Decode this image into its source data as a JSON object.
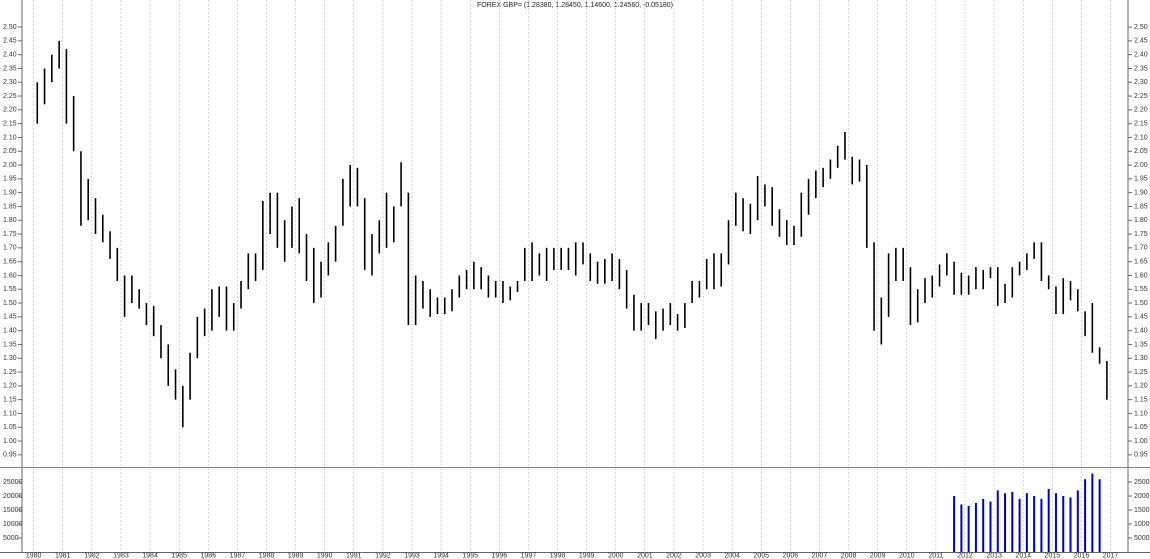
{
  "chart_data": [
    {
      "type": "ohlc",
      "title": "FOREX GBP= (1.28380, 1.28450, 1.14600, 1.24560, -0.05180)",
      "color": "#000000",
      "xlim": [
        1979.6,
        2017.6
      ],
      "ylim": [
        0.906,
        2.598
      ],
      "yticks": [
        0.95,
        {
          "value": 1.0,
          "label": "1.00"
        },
        1.05,
        {
          "value": 1.1,
          "label": "1.10"
        },
        1.15,
        {
          "value": 1.2,
          "label": "1.20"
        },
        1.25,
        {
          "value": 1.3,
          "label": "1.30"
        },
        1.35,
        {
          "value": 1.4,
          "label": "1.40"
        },
        1.45,
        {
          "value": 1.5,
          "label": "1.50"
        },
        1.55,
        {
          "value": 1.6,
          "label": "1.60"
        },
        1.65,
        {
          "value": 1.7,
          "label": "1.70"
        },
        1.75,
        {
          "value": 1.8,
          "label": "1.80"
        },
        1.85,
        {
          "value": 1.9,
          "label": "1.90"
        },
        1.95,
        {
          "value": 2.0,
          "label": "2.00"
        },
        2.05,
        {
          "value": 2.1,
          "label": "2.10"
        },
        2.15,
        {
          "value": 2.2,
          "label": "2.20"
        },
        2.25,
        {
          "value": 2.3,
          "label": "2.30"
        },
        2.35,
        {
          "value": 2.4,
          "label": "2.40"
        },
        2.45,
        {
          "value": 2.5,
          "label": "2.50"
        }
      ],
      "x": [
        1980.125,
        1980.375,
        1980.625,
        1980.875,
        1981.125,
        1981.375,
        1981.625,
        1981.875,
        1982.125,
        1982.375,
        1982.625,
        1982.875,
        1983.125,
        1983.375,
        1983.625,
        1983.875,
        1984.125,
        1984.375,
        1984.625,
        1984.875,
        1985.125,
        1985.375,
        1985.625,
        1985.875,
        1986.125,
        1986.375,
        1986.625,
        1986.875,
        1987.125,
        1987.375,
        1987.625,
        1987.875,
        1988.125,
        1988.375,
        1988.625,
        1988.875,
        1989.125,
        1989.375,
        1989.625,
        1989.875,
        1990.125,
        1990.375,
        1990.625,
        1990.875,
        1991.125,
        1991.375,
        1991.625,
        1991.875,
        1992.125,
        1992.375,
        1992.625,
        1992.875,
        1993.125,
        1993.375,
        1993.625,
        1993.875,
        1994.125,
        1994.375,
        1994.625,
        1994.875,
        1995.125,
        1995.375,
        1995.625,
        1995.875,
        1996.125,
        1996.375,
        1996.625,
        1996.875,
        1997.125,
        1997.375,
        1997.625,
        1997.875,
        1998.125,
        1998.375,
        1998.625,
        1998.875,
        1999.125,
        1999.375,
        1999.625,
        1999.875,
        2000.125,
        2000.375,
        2000.625,
        2000.875,
        2001.125,
        2001.375,
        2001.625,
        2001.875,
        2002.125,
        2002.375,
        2002.625,
        2002.875,
        2003.125,
        2003.375,
        2003.625,
        2003.875,
        2004.125,
        2004.375,
        2004.625,
        2004.875,
        2005.125,
        2005.375,
        2005.625,
        2005.875,
        2006.125,
        2006.375,
        2006.625,
        2006.875,
        2007.125,
        2007.375,
        2007.625,
        2007.875,
        2008.125,
        2008.375,
        2008.625,
        2008.875,
        2009.125,
        2009.375,
        2009.625,
        2009.875,
        2010.125,
        2010.375,
        2010.625,
        2010.875,
        2011.125,
        2011.375,
        2011.625,
        2011.875,
        2012.125,
        2012.375,
        2012.625,
        2012.875,
        2013.125,
        2013.375,
        2013.625,
        2013.875,
        2014.125,
        2014.375,
        2014.625,
        2014.875,
        2015.125,
        2015.375,
        2015.625,
        2015.875,
        2016.125,
        2016.375,
        2016.625,
        2016.875
      ],
      "high": [
        2.3,
        2.35,
        2.4,
        2.45,
        2.42,
        2.25,
        2.05,
        1.95,
        1.88,
        1.82,
        1.76,
        1.7,
        1.6,
        1.6,
        1.55,
        1.5,
        1.49,
        1.42,
        1.35,
        1.26,
        1.2,
        1.32,
        1.45,
        1.48,
        1.55,
        1.56,
        1.56,
        1.5,
        1.58,
        1.68,
        1.68,
        1.87,
        1.9,
        1.9,
        1.8,
        1.85,
        1.88,
        1.75,
        1.7,
        1.65,
        1.72,
        1.78,
        1.95,
        2.0,
        1.99,
        1.88,
        1.75,
        1.8,
        1.9,
        1.85,
        2.01,
        1.9,
        1.6,
        1.58,
        1.55,
        1.52,
        1.52,
        1.55,
        1.6,
        1.62,
        1.65,
        1.63,
        1.6,
        1.58,
        1.58,
        1.56,
        1.58,
        1.7,
        1.72,
        1.68,
        1.7,
        1.7,
        1.7,
        1.7,
        1.72,
        1.72,
        1.68,
        1.65,
        1.66,
        1.68,
        1.66,
        1.62,
        1.53,
        1.5,
        1.5,
        1.47,
        1.48,
        1.5,
        1.46,
        1.5,
        1.58,
        1.58,
        1.66,
        1.68,
        1.68,
        1.8,
        1.9,
        1.88,
        1.86,
        1.96,
        1.93,
        1.92,
        1.84,
        1.8,
        1.78,
        1.9,
        1.95,
        1.98,
        1.99,
        2.02,
        2.07,
        2.12,
        2.03,
        2.02,
        2.0,
        1.72,
        1.52,
        1.68,
        1.7,
        1.7,
        1.63,
        1.55,
        1.59,
        1.6,
        1.64,
        1.68,
        1.65,
        1.61,
        1.6,
        1.63,
        1.62,
        1.63,
        1.63,
        1.57,
        1.63,
        1.65,
        1.68,
        1.72,
        1.72,
        1.6,
        1.56,
        1.59,
        1.58,
        1.55,
        1.47,
        1.5,
        1.34,
        1.29
      ],
      "low": [
        2.15,
        2.22,
        2.3,
        2.35,
        2.15,
        2.05,
        1.78,
        1.8,
        1.75,
        1.72,
        1.66,
        1.58,
        1.45,
        1.5,
        1.48,
        1.42,
        1.38,
        1.3,
        1.2,
        1.15,
        1.05,
        1.15,
        1.3,
        1.38,
        1.4,
        1.45,
        1.4,
        1.4,
        1.48,
        1.55,
        1.58,
        1.62,
        1.75,
        1.7,
        1.65,
        1.7,
        1.68,
        1.58,
        1.5,
        1.52,
        1.6,
        1.65,
        1.78,
        1.85,
        1.85,
        1.62,
        1.6,
        1.68,
        1.7,
        1.72,
        1.85,
        1.42,
        1.42,
        1.48,
        1.45,
        1.46,
        1.46,
        1.47,
        1.52,
        1.55,
        1.55,
        1.55,
        1.52,
        1.52,
        1.5,
        1.51,
        1.54,
        1.58,
        1.58,
        1.6,
        1.58,
        1.62,
        1.62,
        1.62,
        1.6,
        1.64,
        1.58,
        1.57,
        1.57,
        1.58,
        1.55,
        1.48,
        1.4,
        1.4,
        1.42,
        1.37,
        1.4,
        1.42,
        1.4,
        1.41,
        1.5,
        1.52,
        1.55,
        1.55,
        1.56,
        1.64,
        1.78,
        1.76,
        1.75,
        1.8,
        1.85,
        1.78,
        1.74,
        1.71,
        1.71,
        1.74,
        1.82,
        1.88,
        1.92,
        1.95,
        1.99,
        2.02,
        1.93,
        1.94,
        1.7,
        1.4,
        1.35,
        1.45,
        1.58,
        1.58,
        1.42,
        1.43,
        1.5,
        1.52,
        1.56,
        1.6,
        1.53,
        1.53,
        1.53,
        1.55,
        1.55,
        1.59,
        1.49,
        1.5,
        1.52,
        1.6,
        1.62,
        1.66,
        1.58,
        1.55,
        1.46,
        1.46,
        1.51,
        1.47,
        1.38,
        1.32,
        1.28,
        1.15
      ]
    },
    {
      "type": "bar",
      "color": "#0000cc",
      "xlim": [
        1979.6,
        2017.6
      ],
      "xticks": [
        1980,
        1981,
        1982,
        1983,
        1984,
        1985,
        1986,
        1987,
        1988,
        1989,
        1990,
        1991,
        1992,
        1993,
        1994,
        1995,
        1996,
        1997,
        1998,
        1999,
        2000,
        2001,
        2002,
        2003,
        2004,
        2005,
        2006,
        2007,
        2008,
        2009,
        2010,
        2011,
        2012,
        2013,
        2014,
        2015,
        2016,
        2017
      ],
      "ylim": [
        0,
        30000
      ],
      "yticks": [
        5000,
        10000,
        15000,
        20000,
        25000
      ],
      "x": [
        2011.625,
        2011.875,
        2012.125,
        2012.375,
        2012.625,
        2012.875,
        2013.125,
        2013.375,
        2013.625,
        2013.875,
        2014.125,
        2014.375,
        2014.625,
        2014.875,
        2015.125,
        2015.375,
        2015.625,
        2015.875,
        2016.125,
        2016.375,
        2016.625
      ],
      "values": [
        20000,
        17000,
        16500,
        17500,
        19000,
        18000,
        22000,
        21000,
        21500,
        19000,
        21000,
        20000,
        19000,
        22500,
        21000,
        20000,
        19500,
        22000,
        26000,
        28000,
        26000
      ]
    }
  ]
}
